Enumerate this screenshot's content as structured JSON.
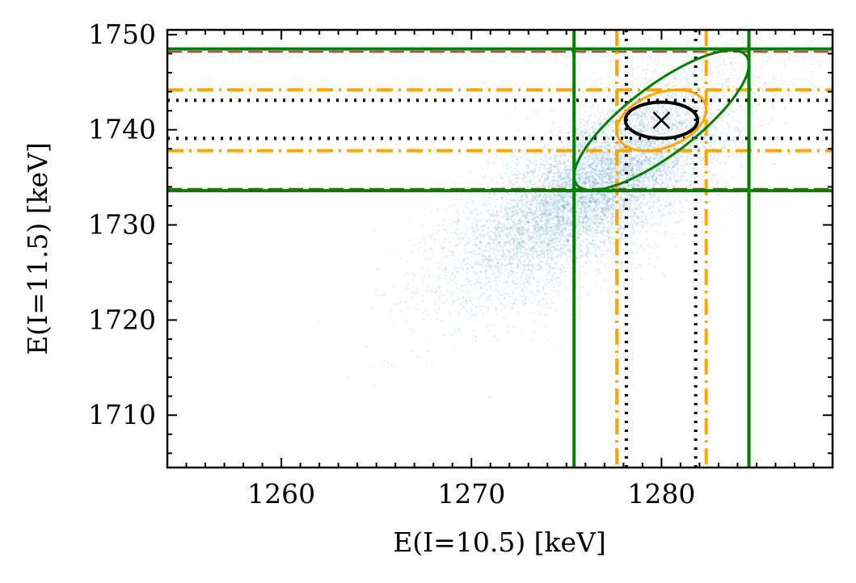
{
  "chart_data": {
    "type": "scatter",
    "title": "",
    "xlabel": "E(I=10.5) [keV]",
    "ylabel": "E(I=11.5) [keV]",
    "xlim": [
      1254,
      1289
    ],
    "ylim": [
      1704.5,
      1750.5
    ],
    "x_ticks": [
      1260,
      1270,
      1280
    ],
    "y_ticks": [
      1710,
      1720,
      1730,
      1740,
      1750
    ],
    "x_tick_labels": [
      "1260",
      "1270",
      "1280"
    ],
    "y_tick_labels": [
      "1710",
      "1720",
      "1730",
      "1740",
      "1750"
    ],
    "grid": false,
    "legend": "none",
    "samples": {
      "color": "#1f77b4",
      "center": [
        1276.5,
        1734
      ],
      "sd_x": 3.6,
      "sd_y": 5.5,
      "correlation": 0.72,
      "count": 9000
    },
    "best_fit": {
      "x": 1280.0,
      "y": 1741.0,
      "marker": "x",
      "color": "#000000"
    },
    "ellipses": [
      {
        "name": "black",
        "color": "#000000",
        "cx": 1280.0,
        "cy": 1741.0,
        "rx": 1.9,
        "ry": 1.9,
        "angle_deg": 0,
        "stroke": 4
      },
      {
        "name": "orange",
        "color": "#FFA500",
        "cx": 1280.0,
        "cy": 1741.0,
        "x_half_width": 2.35,
        "y_half_height": 3.2,
        "correlation": 0.35,
        "stroke": 3
      },
      {
        "name": "green",
        "color": "#008000",
        "cx": 1280.0,
        "cy": 1741.0,
        "x_half_width": 4.6,
        "y_half_height": 7.35,
        "correlation": 0.8,
        "stroke": 3
      }
    ],
    "vertical_lines": [
      {
        "x": 1275.4,
        "color": "#008000",
        "style": "solid"
      },
      {
        "x": 1284.6,
        "color": "#008000",
        "style": "solid"
      },
      {
        "x": 1277.65,
        "color": "#FFA500",
        "style": "dashdot"
      },
      {
        "x": 1282.35,
        "color": "#FFA500",
        "style": "dashdot"
      },
      {
        "x": 1278.15,
        "color": "#000000",
        "style": "dotted"
      },
      {
        "x": 1281.8,
        "color": "#000000",
        "style": "dotted"
      }
    ],
    "horizontal_lines": [
      {
        "y": 1733.6,
        "color": "#008000",
        "style": "solid"
      },
      {
        "y": 1748.5,
        "color": "#008000",
        "style": "solid"
      },
      {
        "y": 1733.8,
        "color": "#d62728",
        "style": "dashed"
      },
      {
        "y": 1748.2,
        "color": "#d62728",
        "style": "dashed"
      },
      {
        "y": 1737.8,
        "color": "#FFA500",
        "style": "dashdot"
      },
      {
        "y": 1744.2,
        "color": "#FFA500",
        "style": "dashdot"
      },
      {
        "y": 1739.1,
        "color": "#000000",
        "style": "dotted"
      },
      {
        "y": 1743.1,
        "color": "#000000",
        "style": "dotted"
      }
    ]
  }
}
